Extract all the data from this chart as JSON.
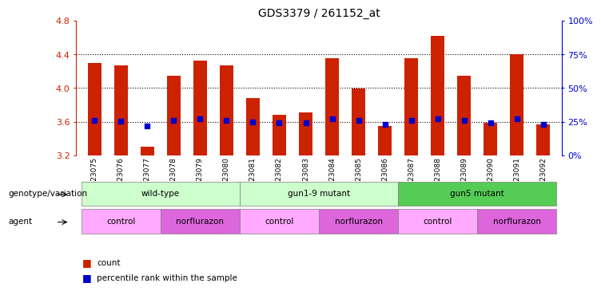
{
  "title": "GDS3379 / 261152_at",
  "samples": [
    "GSM323075",
    "GSM323076",
    "GSM323077",
    "GSM323078",
    "GSM323079",
    "GSM323080",
    "GSM323081",
    "GSM323082",
    "GSM323083",
    "GSM323084",
    "GSM323085",
    "GSM323086",
    "GSM323087",
    "GSM323088",
    "GSM323089",
    "GSM323090",
    "GSM323091",
    "GSM323092"
  ],
  "counts": [
    4.3,
    4.27,
    3.3,
    4.15,
    4.33,
    4.27,
    3.88,
    3.68,
    3.71,
    4.35,
    3.99,
    3.55,
    4.35,
    4.62,
    4.15,
    3.59,
    4.4,
    3.57
  ],
  "percentile_values": [
    3.62,
    3.61,
    3.55,
    3.62,
    3.63,
    3.62,
    3.6,
    3.59,
    3.59,
    3.63,
    3.62,
    3.57,
    3.62,
    3.63,
    3.62,
    3.59,
    3.63,
    3.57
  ],
  "bar_color": "#cc2200",
  "dot_color": "#0000cc",
  "ymin": 3.2,
  "ymax": 4.8,
  "yticks": [
    3.2,
    3.6,
    4.0,
    4.4,
    4.8
  ],
  "right_yticks": [
    0,
    25,
    50,
    75,
    100
  ],
  "right_ytick_positions": [
    3.2,
    3.6,
    4.0,
    4.4,
    4.8
  ],
  "genotype_groups": [
    {
      "label": "wild-type",
      "start": 0,
      "end": 5,
      "color": "#ccffcc"
    },
    {
      "label": "gun1-9 mutant",
      "start": 6,
      "end": 11,
      "color": "#ccffcc"
    },
    {
      "label": "gun5 mutant",
      "start": 12,
      "end": 17,
      "color": "#55cc55"
    }
  ],
  "agent_groups": [
    {
      "label": "control",
      "start": 0,
      "end": 2,
      "color": "#ffaaff"
    },
    {
      "label": "norflurazon",
      "start": 3,
      "end": 5,
      "color": "#dd66dd"
    },
    {
      "label": "control",
      "start": 6,
      "end": 8,
      "color": "#ffaaff"
    },
    {
      "label": "norflurazon",
      "start": 9,
      "end": 11,
      "color": "#dd66dd"
    },
    {
      "label": "control",
      "start": 12,
      "end": 14,
      "color": "#ffaaff"
    },
    {
      "label": "norflurazon",
      "start": 15,
      "end": 17,
      "color": "#dd66dd"
    }
  ],
  "legend_count_color": "#cc2200",
  "legend_dot_color": "#0000cc",
  "bar_width": 0.5,
  "background_color": "#ffffff"
}
